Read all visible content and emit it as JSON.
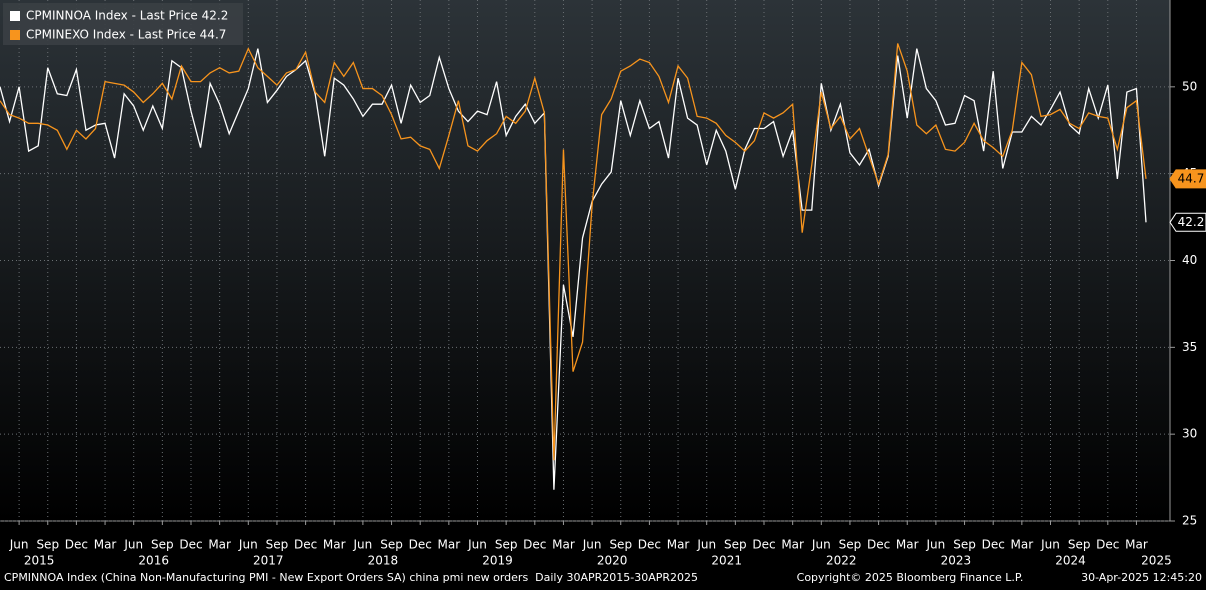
{
  "chart_data": {
    "type": "line",
    "x": [
      "2015-04",
      "2015-05",
      "2015-06",
      "2015-07",
      "2015-08",
      "2015-09",
      "2015-10",
      "2015-11",
      "2015-12",
      "2016-01",
      "2016-02",
      "2016-03",
      "2016-04",
      "2016-05",
      "2016-06",
      "2016-07",
      "2016-08",
      "2016-09",
      "2016-10",
      "2016-11",
      "2016-12",
      "2017-01",
      "2017-02",
      "2017-03",
      "2017-04",
      "2017-05",
      "2017-06",
      "2017-07",
      "2017-08",
      "2017-09",
      "2017-10",
      "2017-11",
      "2017-12",
      "2018-01",
      "2018-02",
      "2018-03",
      "2018-04",
      "2018-05",
      "2018-06",
      "2018-07",
      "2018-08",
      "2018-09",
      "2018-10",
      "2018-11",
      "2018-12",
      "2019-01",
      "2019-02",
      "2019-03",
      "2019-04",
      "2019-05",
      "2019-06",
      "2019-07",
      "2019-08",
      "2019-09",
      "2019-10",
      "2019-11",
      "2019-12",
      "2020-01",
      "2020-02",
      "2020-03",
      "2020-04",
      "2020-05",
      "2020-06",
      "2020-07",
      "2020-08",
      "2020-09",
      "2020-10",
      "2020-11",
      "2020-12",
      "2021-01",
      "2021-02",
      "2021-03",
      "2021-04",
      "2021-05",
      "2021-06",
      "2021-07",
      "2021-08",
      "2021-09",
      "2021-10",
      "2021-11",
      "2021-12",
      "2022-01",
      "2022-02",
      "2022-03",
      "2022-04",
      "2022-05",
      "2022-06",
      "2022-07",
      "2022-08",
      "2022-09",
      "2022-10",
      "2022-11",
      "2022-12",
      "2023-01",
      "2023-02",
      "2023-03",
      "2023-04",
      "2023-05",
      "2023-06",
      "2023-07",
      "2023-08",
      "2023-09",
      "2023-10",
      "2023-11",
      "2023-12",
      "2024-01",
      "2024-02",
      "2024-03",
      "2024-04",
      "2024-05",
      "2024-06",
      "2024-07",
      "2024-08",
      "2024-09",
      "2024-10",
      "2024-11",
      "2024-12",
      "2025-01",
      "2025-02",
      "2025-03",
      "2025-04"
    ],
    "series": [
      {
        "name": "CPMINNOA Index - Last Price 42.2",
        "color": "#ffffff",
        "values": [
          50.0,
          48.0,
          50.0,
          46.3,
          46.6,
          51.1,
          49.6,
          49.5,
          51.0,
          47.5,
          47.8,
          47.9,
          45.9,
          49.6,
          48.9,
          47.5,
          48.9,
          47.6,
          51.5,
          51.1,
          48.6,
          46.5,
          50.2,
          49.0,
          47.3,
          48.6,
          49.9,
          52.2,
          49.1,
          49.8,
          50.6,
          51.0,
          51.5,
          49.6,
          46.0,
          50.5,
          50.1,
          49.3,
          48.3,
          49.0,
          49.0,
          50.1,
          47.9,
          50.1,
          49.1,
          49.5,
          51.7,
          49.9,
          48.6,
          48.0,
          48.6,
          48.4,
          50.3,
          47.2,
          48.3,
          49.0,
          47.9,
          48.5,
          26.8,
          38.6,
          35.6,
          41.3,
          43.4,
          44.4,
          45.1,
          49.2,
          47.2,
          49.2,
          47.6,
          48.0,
          45.9,
          50.5,
          48.2,
          47.8,
          45.5,
          47.5,
          46.3,
          44.1,
          46.4,
          47.6,
          47.6,
          48.0,
          46.0,
          47.5,
          42.9,
          42.9,
          50.2,
          47.5,
          49.0,
          46.2,
          45.5,
          46.4,
          44.3,
          46.0,
          51.8,
          48.2,
          52.2,
          49.9,
          49.2,
          47.8,
          47.9,
          49.5,
          49.2,
          46.3,
          50.9,
          45.3,
          47.4,
          47.4,
          48.3,
          47.8,
          48.7,
          49.7,
          47.8,
          47.3,
          49.9,
          48.2,
          50.1,
          44.7,
          49.7,
          49.9,
          42.2
        ]
      },
      {
        "name": "CPMINEXO Index - Last Price 44.7",
        "color": "#f7941d",
        "values": [
          49.2,
          48.4,
          48.2,
          47.9,
          47.9,
          47.8,
          47.5,
          46.4,
          47.5,
          47.0,
          47.6,
          50.3,
          50.2,
          50.1,
          49.7,
          49.1,
          49.6,
          50.2,
          49.3,
          51.2,
          50.3,
          50.3,
          50.8,
          51.1,
          50.8,
          50.9,
          52.2,
          51.1,
          50.6,
          50.1,
          50.8,
          51.0,
          52.0,
          49.7,
          49.1,
          51.4,
          50.6,
          51.4,
          49.9,
          49.9,
          49.5,
          48.4,
          47.0,
          47.1,
          46.6,
          46.4,
          45.3,
          47.2,
          49.2,
          46.6,
          46.3,
          46.9,
          47.3,
          48.3,
          47.9,
          48.6,
          50.5,
          48.5,
          28.5,
          46.4,
          33.6,
          35.3,
          43.2,
          48.4,
          49.3,
          50.9,
          51.2,
          51.6,
          51.4,
          50.6,
          49.1,
          51.2,
          50.5,
          48.3,
          48.2,
          47.9,
          47.2,
          46.8,
          46.3,
          46.9,
          48.5,
          48.2,
          48.5,
          49.0,
          41.6,
          45.5,
          49.7,
          47.6,
          48.3,
          47.0,
          47.6,
          46.0,
          44.4,
          46.1,
          52.5,
          50.9,
          47.8,
          47.3,
          47.8,
          46.4,
          46.3,
          46.8,
          47.9,
          46.9,
          46.5,
          46.0,
          47.5,
          51.4,
          50.7,
          48.3,
          48.4,
          48.7,
          47.9,
          47.6,
          48.5,
          48.3,
          48.2,
          46.4,
          48.8,
          49.2,
          44.7
        ]
      }
    ],
    "ylim": [
      25,
      55
    ],
    "yticks": [
      25,
      30,
      35,
      40,
      45,
      50
    ],
    "xticks": [
      {
        "value": "2015-06",
        "label": "Jun"
      },
      {
        "value": "2015-09",
        "label": "Sep"
      },
      {
        "value": "2015-12",
        "label": "Dec"
      },
      {
        "value": "2016-03",
        "label": "Mar"
      },
      {
        "value": "2016-06",
        "label": "Jun"
      },
      {
        "value": "2016-09",
        "label": "Sep"
      },
      {
        "value": "2016-12",
        "label": "Dec"
      },
      {
        "value": "2017-03",
        "label": "Mar"
      },
      {
        "value": "2017-06",
        "label": "Jun"
      },
      {
        "value": "2017-09",
        "label": "Sep"
      },
      {
        "value": "2017-12",
        "label": "Dec"
      },
      {
        "value": "2018-03",
        "label": "Mar"
      },
      {
        "value": "2018-06",
        "label": "Jun"
      },
      {
        "value": "2018-09",
        "label": "Sep"
      },
      {
        "value": "2018-12",
        "label": "Dec"
      },
      {
        "value": "2019-03",
        "label": "Mar"
      },
      {
        "value": "2019-06",
        "label": "Jun"
      },
      {
        "value": "2019-09",
        "label": "Sep"
      },
      {
        "value": "2019-12",
        "label": "Dec"
      },
      {
        "value": "2020-03",
        "label": "Mar"
      },
      {
        "value": "2020-06",
        "label": "Jun"
      },
      {
        "value": "2020-09",
        "label": "Sep"
      },
      {
        "value": "2020-12",
        "label": "Dec"
      },
      {
        "value": "2021-03",
        "label": "Mar"
      },
      {
        "value": "2021-06",
        "label": "Jun"
      },
      {
        "value": "2021-09",
        "label": "Sep"
      },
      {
        "value": "2021-12",
        "label": "Dec"
      },
      {
        "value": "2022-03",
        "label": "Mar"
      },
      {
        "value": "2022-06",
        "label": "Jun"
      },
      {
        "value": "2022-09",
        "label": "Sep"
      },
      {
        "value": "2022-12",
        "label": "Dec"
      },
      {
        "value": "2023-03",
        "label": "Mar"
      },
      {
        "value": "2023-06",
        "label": "Jun"
      },
      {
        "value": "2023-09",
        "label": "Sep"
      },
      {
        "value": "2023-12",
        "label": "Dec"
      },
      {
        "value": "2024-03",
        "label": "Mar"
      },
      {
        "value": "2024-06",
        "label": "Jun"
      },
      {
        "value": "2024-09",
        "label": "Sep"
      },
      {
        "value": "2024-12",
        "label": "Dec"
      },
      {
        "value": "2025-03",
        "label": "Mar"
      }
    ],
    "year_ticks": [
      {
        "value": "2015-06",
        "label": "2015"
      },
      {
        "value": "2016-06",
        "label": "2016"
      },
      {
        "value": "2017-06",
        "label": "2017"
      },
      {
        "value": "2018-06",
        "label": "2018"
      },
      {
        "value": "2019-06",
        "label": "2019"
      },
      {
        "value": "2020-06",
        "label": "2020"
      },
      {
        "value": "2021-06",
        "label": "2021"
      },
      {
        "value": "2022-06",
        "label": "2022"
      },
      {
        "value": "2023-06",
        "label": "2023"
      },
      {
        "value": "2024-06",
        "label": "2024"
      },
      {
        "value": "2025-03",
        "label": "2025"
      }
    ],
    "grid": true,
    "legend": "upper left",
    "footer": {
      "description": "CPMINNOA Index (China Non-Manufacturing PMI - New Export Orders SA) china pmi new orders  Daily 30APR2015-30APR2025",
      "copyright": "Copyright© 2025 Bloomberg Finance L.P.",
      "timestamp": "30-Apr-2025 12:45:20"
    }
  }
}
